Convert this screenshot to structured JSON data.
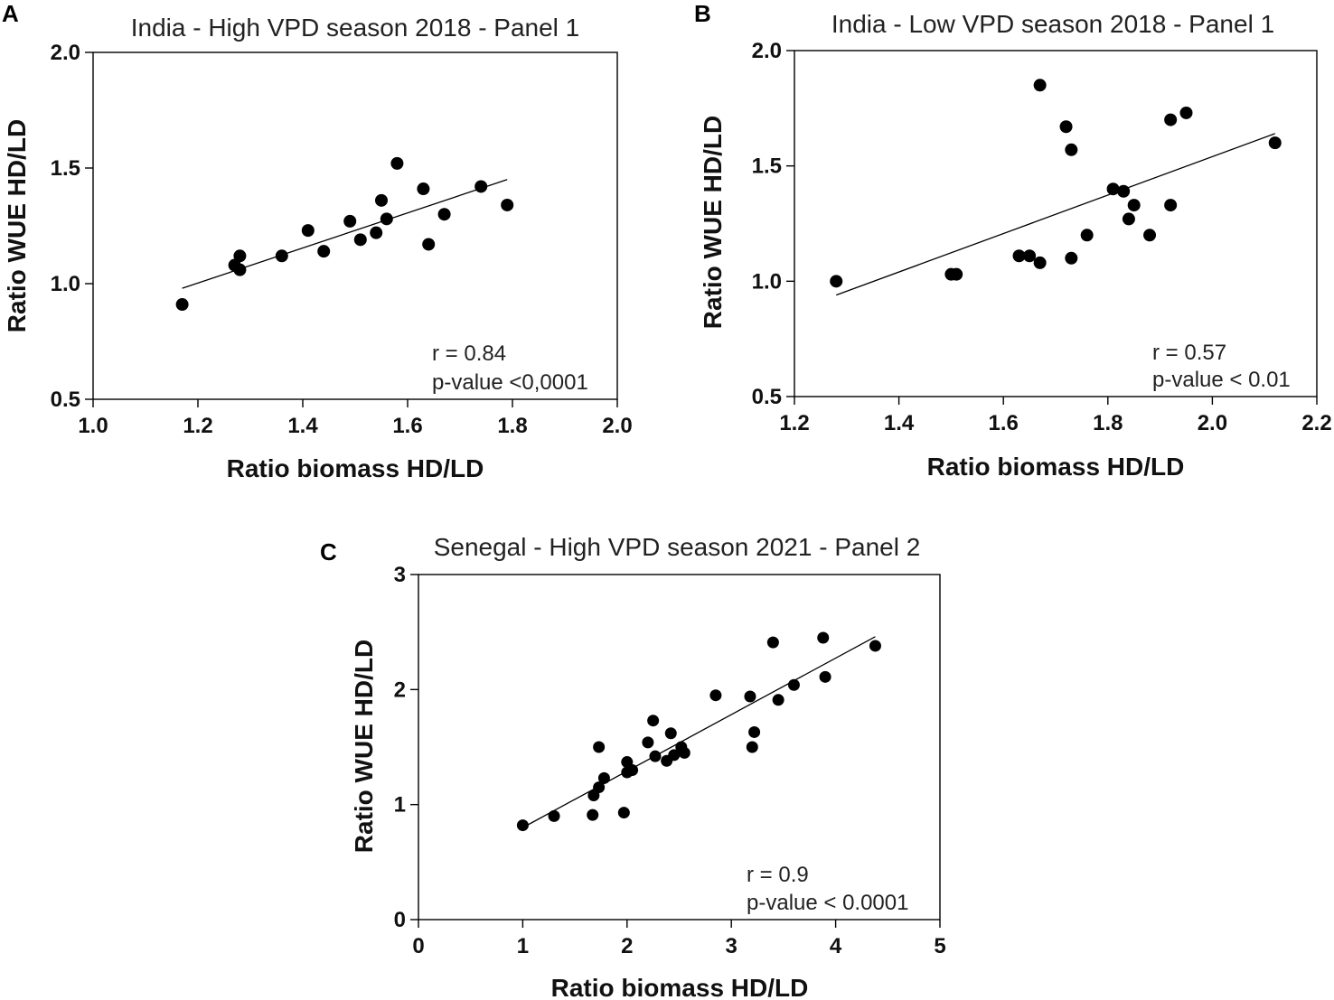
{
  "chart_data": [
    {
      "panel": "A",
      "type": "scatter",
      "title": "India - High VPD season 2018 - Panel 1",
      "xlabel": "Ratio biomass HD/LD",
      "ylabel": "Ratio WUE HD/LD",
      "xlim": [
        1.0,
        2.0
      ],
      "ylim": [
        0.5,
        2.0
      ],
      "xticks": [
        "1.0",
        "1.2",
        "1.4",
        "1.6",
        "1.8",
        "2.0"
      ],
      "yticks": [
        "0.5",
        "1.0",
        "1.5",
        "2.0"
      ],
      "stat_r": "r = 0.84",
      "stat_p": "p-value <0,0001",
      "points": [
        [
          1.17,
          0.91
        ],
        [
          1.27,
          1.08
        ],
        [
          1.28,
          1.06
        ],
        [
          1.28,
          1.12
        ],
        [
          1.36,
          1.12
        ],
        [
          1.41,
          1.23
        ],
        [
          1.44,
          1.14
        ],
        [
          1.49,
          1.27
        ],
        [
          1.51,
          1.19
        ],
        [
          1.54,
          1.22
        ],
        [
          1.55,
          1.36
        ],
        [
          1.56,
          1.28
        ],
        [
          1.58,
          1.52
        ],
        [
          1.63,
          1.41
        ],
        [
          1.64,
          1.17
        ],
        [
          1.67,
          1.3
        ],
        [
          1.74,
          1.42
        ],
        [
          1.79,
          1.34
        ]
      ],
      "fit": [
        [
          1.17,
          0.98
        ],
        [
          1.79,
          1.45
        ]
      ]
    },
    {
      "panel": "B",
      "type": "scatter",
      "title": "India - Low VPD season 2018 - Panel 1",
      "xlabel": "Ratio biomass HD/LD",
      "ylabel": "Ratio WUE HD/LD",
      "xlim": [
        1.2,
        2.2
      ],
      "ylim": [
        0.5,
        2.0
      ],
      "xticks": [
        "1.2",
        "1.4",
        "1.6",
        "1.8",
        "2.0",
        "2.2"
      ],
      "yticks": [
        "0.5",
        "1.0",
        "1.5",
        "2.0"
      ],
      "stat_r": "r = 0.57",
      "stat_p": "p-value < 0.01",
      "points": [
        [
          1.28,
          1.0
        ],
        [
          1.5,
          1.03
        ],
        [
          1.51,
          1.03
        ],
        [
          1.63,
          1.11
        ],
        [
          1.65,
          1.11
        ],
        [
          1.67,
          1.08
        ],
        [
          1.67,
          1.85
        ],
        [
          1.72,
          1.67
        ],
        [
          1.73,
          1.57
        ],
        [
          1.73,
          1.1
        ],
        [
          1.76,
          1.2
        ],
        [
          1.81,
          1.4
        ],
        [
          1.83,
          1.39
        ],
        [
          1.84,
          1.27
        ],
        [
          1.85,
          1.33
        ],
        [
          1.88,
          1.2
        ],
        [
          1.92,
          1.33
        ],
        [
          1.92,
          1.7
        ],
        [
          1.95,
          1.73
        ],
        [
          2.12,
          1.6
        ]
      ],
      "fit": [
        [
          1.28,
          0.94
        ],
        [
          2.12,
          1.64
        ]
      ]
    },
    {
      "panel": "C",
      "type": "scatter",
      "title": "Senegal - High VPD season 2021 - Panel 2",
      "xlabel": "Ratio biomass HD/LD",
      "ylabel": "Ratio WUE HD/LD",
      "xlim": [
        0,
        5
      ],
      "ylim": [
        0,
        3
      ],
      "xticks": [
        "0",
        "1",
        "2",
        "3",
        "4",
        "5"
      ],
      "yticks": [
        "0",
        "1",
        "2",
        "3"
      ],
      "stat_r": "r = 0.9",
      "stat_p": "p-value < 0.0001",
      "points": [
        [
          1.0,
          0.82
        ],
        [
          1.3,
          0.9
        ],
        [
          1.67,
          0.91
        ],
        [
          1.68,
          1.08
        ],
        [
          1.73,
          1.15
        ],
        [
          1.73,
          1.5
        ],
        [
          1.78,
          1.23
        ],
        [
          1.97,
          0.93
        ],
        [
          2.0,
          1.37
        ],
        [
          2.0,
          1.28
        ],
        [
          2.05,
          1.3
        ],
        [
          2.2,
          1.54
        ],
        [
          2.25,
          1.73
        ],
        [
          2.27,
          1.42
        ],
        [
          2.38,
          1.38
        ],
        [
          2.42,
          1.62
        ],
        [
          2.45,
          1.43
        ],
        [
          2.52,
          1.5
        ],
        [
          2.55,
          1.45
        ],
        [
          2.85,
          1.95
        ],
        [
          3.18,
          1.94
        ],
        [
          3.2,
          1.5
        ],
        [
          3.22,
          1.63
        ],
        [
          3.4,
          2.41
        ],
        [
          3.45,
          1.91
        ],
        [
          3.6,
          2.04
        ],
        [
          3.88,
          2.45
        ],
        [
          3.9,
          2.11
        ],
        [
          4.38,
          2.38
        ]
      ],
      "fit": [
        [
          1.0,
          0.8
        ],
        [
          4.38,
          2.46
        ]
      ]
    }
  ]
}
